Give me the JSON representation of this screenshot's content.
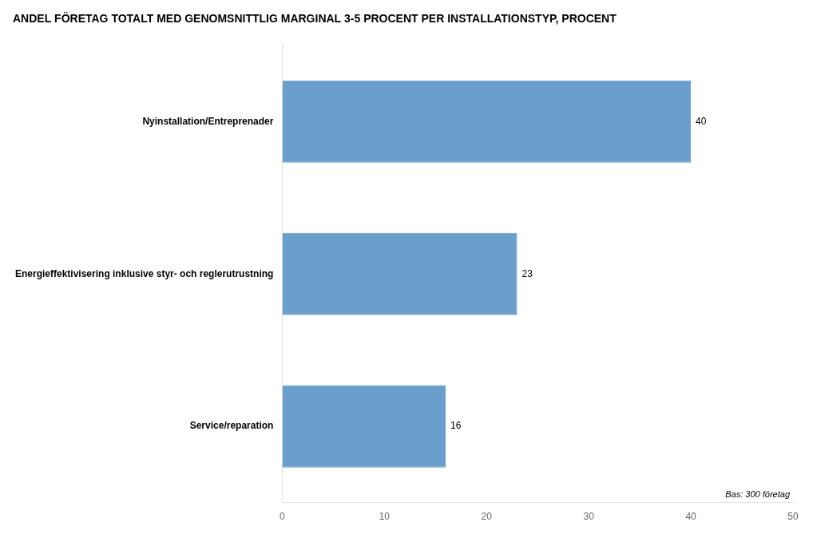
{
  "chart_data": {
    "type": "bar",
    "orientation": "horizontal",
    "title": "ANDEL FÖRETAG TOTALT MED GENOMSNITTLIG MARGINAL 3-5 PROCENT PER INSTALLATIONSTYP, PROCENT",
    "categories": [
      "Service/reparation",
      "Energieffektivisering inklusive styr- och reglerutrustning",
      "Nyinstallation/Entreprenader"
    ],
    "values": [
      16,
      23,
      40
    ],
    "color": "#6A9FCC",
    "xlim": [
      0,
      50
    ],
    "xticks": [
      0,
      10,
      20,
      30,
      40,
      50
    ],
    "grid": false,
    "data_labels": true,
    "note": "Bas: 300 företag"
  }
}
